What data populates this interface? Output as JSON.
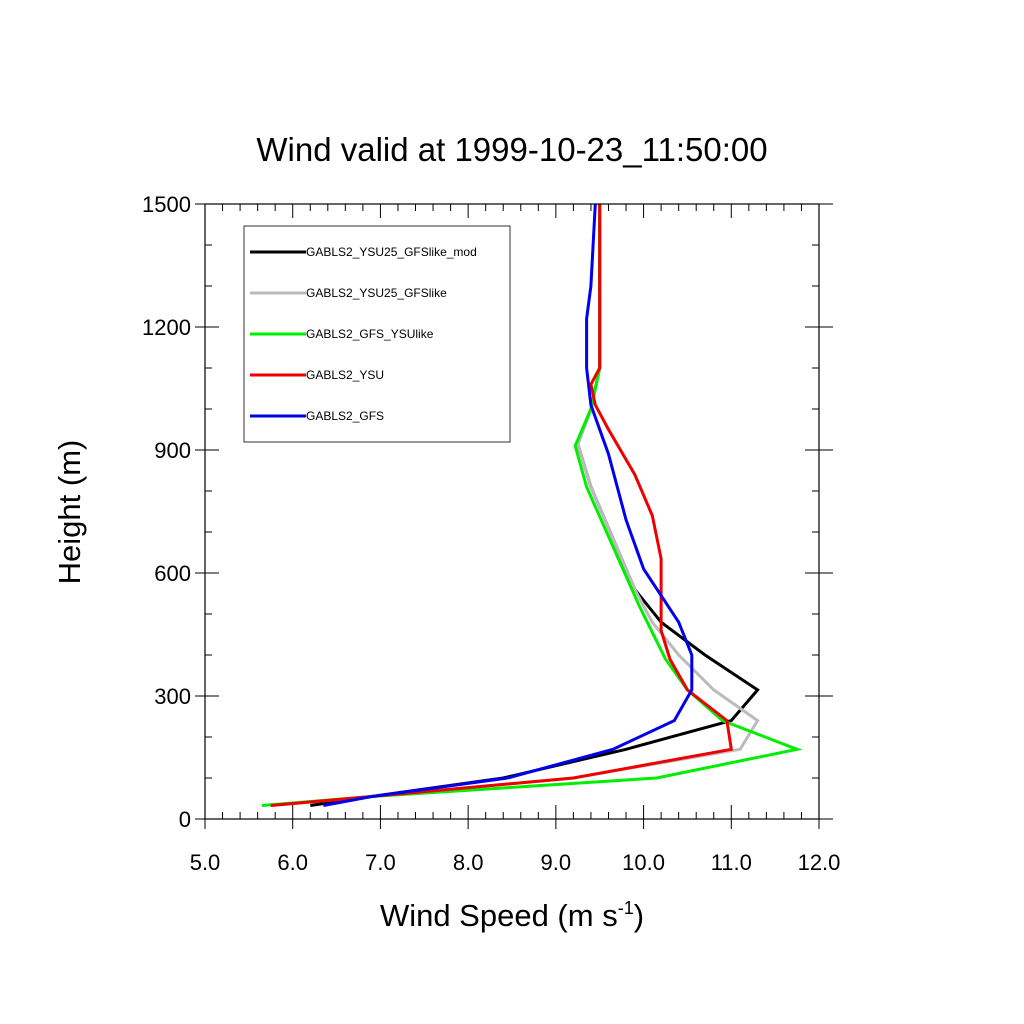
{
  "chart_data": {
    "type": "line",
    "title": "Wind valid at 1999-10-23_11:50:00",
    "xlabel": "Wind Speed (m s",
    "xlabel_sup": "-1",
    "xlabel_close": ")",
    "ylabel": "Height (m)",
    "xlim": [
      5.0,
      12.0
    ],
    "ylim": [
      0,
      1500
    ],
    "xticks": [
      5.0,
      6.0,
      7.0,
      8.0,
      9.0,
      10.0,
      11.0,
      12.0
    ],
    "xtick_labels": [
      "5.0",
      "6.0",
      "7.0",
      "8.0",
      "9.0",
      "10.0",
      "11.0",
      "12.0"
    ],
    "yticks": [
      0,
      300,
      600,
      900,
      1200,
      1500
    ],
    "ytick_labels": [
      "0",
      "300",
      "600",
      "900",
      "1200",
      "1500"
    ],
    "grid": false,
    "legend_position": "top-left",
    "series": [
      {
        "name": "GABLS2_YSU25_GFSlike_mod",
        "color": "#000000",
        "points": [
          [
            6.2,
            33
          ],
          [
            6.9,
            55
          ],
          [
            8.4,
            100
          ],
          [
            9.8,
            170
          ],
          [
            11.0,
            240
          ],
          [
            11.3,
            315
          ],
          [
            10.7,
            400
          ],
          [
            10.2,
            480
          ],
          [
            9.9,
            560
          ],
          [
            9.4,
            810
          ],
          [
            9.25,
            915
          ],
          [
            9.4,
            1000
          ],
          [
            9.5,
            1100
          ],
          [
            9.5,
            1200
          ],
          [
            9.5,
            1300
          ],
          [
            9.5,
            1400
          ],
          [
            9.5,
            1500
          ]
        ]
      },
      {
        "name": "GABLS2_YSU25_GFSlike",
        "color": "#bbbbbb",
        "points": [
          [
            5.75,
            33
          ],
          [
            6.9,
            55
          ],
          [
            9.2,
            100
          ],
          [
            11.1,
            170
          ],
          [
            11.3,
            240
          ],
          [
            10.8,
            315
          ],
          [
            10.4,
            400
          ],
          [
            10.1,
            480
          ],
          [
            9.9,
            560
          ],
          [
            9.4,
            810
          ],
          [
            9.25,
            915
          ],
          [
            9.4,
            1000
          ],
          [
            9.5,
            1100
          ],
          [
            9.5,
            1200
          ],
          [
            9.5,
            1300
          ],
          [
            9.5,
            1400
          ],
          [
            9.5,
            1500
          ]
        ]
      },
      {
        "name": "GABLS2_GFS_YSUlike",
        "color": "#00ee00",
        "points": [
          [
            5.65,
            33
          ],
          [
            6.9,
            55
          ],
          [
            10.15,
            100
          ],
          [
            11.75,
            170
          ],
          [
            10.9,
            240
          ],
          [
            10.5,
            315
          ],
          [
            10.25,
            390
          ],
          [
            9.95,
            520
          ],
          [
            9.35,
            810
          ],
          [
            9.22,
            910
          ],
          [
            9.4,
            1000
          ],
          [
            9.5,
            1100
          ],
          [
            9.5,
            1200
          ],
          [
            9.5,
            1300
          ],
          [
            9.5,
            1400
          ],
          [
            9.5,
            1500
          ]
        ]
      },
      {
        "name": "GABLS2_YSU",
        "color": "#ee0000",
        "points": [
          [
            5.75,
            33
          ],
          [
            6.9,
            55
          ],
          [
            9.2,
            100
          ],
          [
            11.0,
            170
          ],
          [
            10.95,
            240
          ],
          [
            10.5,
            315
          ],
          [
            10.3,
            390
          ],
          [
            10.2,
            460
          ],
          [
            10.2,
            560
          ],
          [
            10.2,
            635
          ],
          [
            10.1,
            740
          ],
          [
            9.9,
            840
          ],
          [
            9.6,
            950
          ],
          [
            9.45,
            1010
          ],
          [
            9.4,
            1060
          ],
          [
            9.5,
            1100
          ],
          [
            9.5,
            1200
          ],
          [
            9.5,
            1300
          ],
          [
            9.5,
            1400
          ],
          [
            9.5,
            1500
          ]
        ]
      },
      {
        "name": "GABLS2_GFS",
        "color": "#0000ee",
        "points": [
          [
            6.35,
            33
          ],
          [
            6.9,
            55
          ],
          [
            8.45,
            100
          ],
          [
            9.65,
            170
          ],
          [
            10.35,
            240
          ],
          [
            10.55,
            315
          ],
          [
            10.55,
            400
          ],
          [
            10.4,
            480
          ],
          [
            10.0,
            610
          ],
          [
            9.8,
            730
          ],
          [
            9.6,
            890
          ],
          [
            9.4,
            1010
          ],
          [
            9.35,
            1100
          ],
          [
            9.35,
            1220
          ],
          [
            9.4,
            1300
          ],
          [
            9.45,
            1500
          ]
        ]
      }
    ]
  }
}
